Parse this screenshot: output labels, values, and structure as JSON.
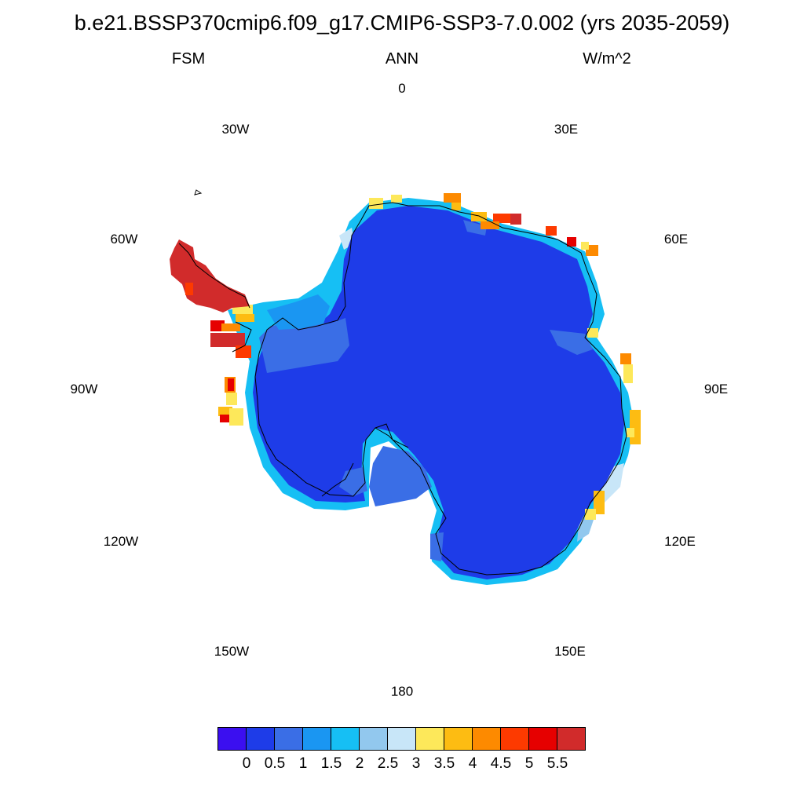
{
  "title": "b.e21.BSSP370cmip6.f09_g17.CMIP6-SSP3-7.0.002 (yrs 2035-2059)",
  "subtitle_left": "FSM",
  "subtitle_center": "ANN",
  "subtitle_right": "W/m^2",
  "longitude_labels": [
    "0",
    "30E",
    "60E",
    "90E",
    "120E",
    "150E",
    "180",
    "150W",
    "120W",
    "90W",
    "60W",
    "30W"
  ],
  "colorbar": {
    "colors": [
      "#3b0ff0",
      "#1e3ce8",
      "#3a6ee6",
      "#1a96f2",
      "#16bff4",
      "#92c8ee",
      "#c8e6f8",
      "#fde85a",
      "#fdbc12",
      "#fd8a00",
      "#fd3a00",
      "#e60000",
      "#d12b2b"
    ],
    "labels": [
      "0",
      "0.5",
      "1",
      "1.5",
      "2",
      "2.5",
      "3",
      "3.5",
      "4",
      "4.5",
      "5",
      "5.5"
    ]
  }
}
